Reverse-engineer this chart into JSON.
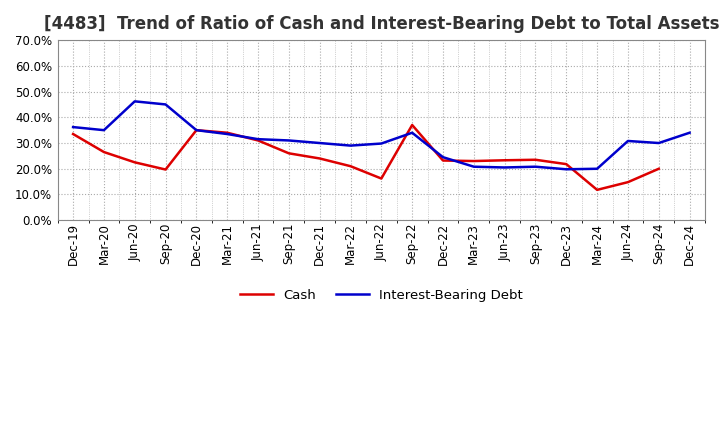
{
  "title": "[4483]  Trend of Ratio of Cash and Interest-Bearing Debt to Total Assets",
  "x_labels": [
    "Dec-19",
    "Mar-20",
    "Jun-20",
    "Sep-20",
    "Dec-20",
    "Mar-21",
    "Jun-21",
    "Sep-21",
    "Dec-21",
    "Mar-22",
    "Jun-22",
    "Sep-22",
    "Dec-22",
    "Mar-23",
    "Jun-23",
    "Sep-23",
    "Dec-23",
    "Mar-24",
    "Jun-24",
    "Sep-24",
    "Dec-24"
  ],
  "cash": [
    0.335,
    0.265,
    0.225,
    0.197,
    0.35,
    0.34,
    0.31,
    0.26,
    0.24,
    0.21,
    0.162,
    0.37,
    0.232,
    0.23,
    0.233,
    0.235,
    0.218,
    0.118,
    0.148,
    0.2,
    null
  ],
  "interest_bearing_debt": [
    0.362,
    0.35,
    0.462,
    0.45,
    0.35,
    0.335,
    0.315,
    0.31,
    0.3,
    0.29,
    0.298,
    0.34,
    0.245,
    0.208,
    0.205,
    0.208,
    0.198,
    0.2,
    0.308,
    0.3,
    0.34
  ],
  "cash_color": "#dd0000",
  "debt_color": "#0000cc",
  "background_color": "#ffffff",
  "plot_bg_color": "#ffffff",
  "grid_color": "#aaaaaa",
  "ylim": [
    0.0,
    0.7
  ],
  "yticks": [
    0.0,
    0.1,
    0.2,
    0.3,
    0.4,
    0.5,
    0.6,
    0.7
  ],
  "legend_cash": "Cash",
  "legend_debt": "Interest-Bearing Debt",
  "title_fontsize": 12,
  "label_fontsize": 8.5,
  "legend_fontsize": 9.5
}
